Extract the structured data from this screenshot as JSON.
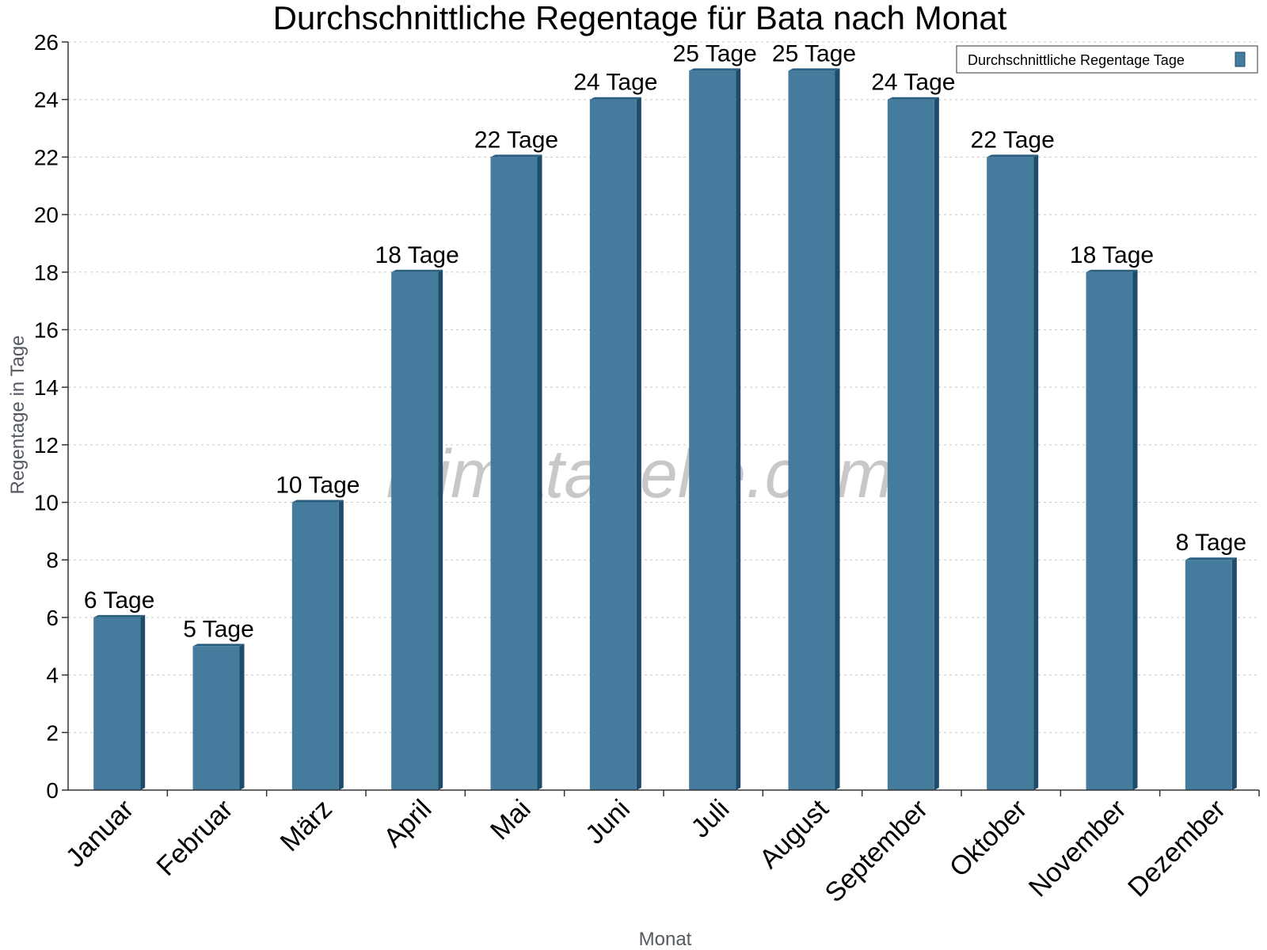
{
  "colors": {
    "bar_front": "#457b9d",
    "bar_side": "#1d4c6b",
    "bar_top": "#2a5f82"
  },
  "watermark": "klimatabelle.com",
  "chart_data": {
    "type": "bar",
    "title": "Durchschnittliche Regentage für Bata nach Monat",
    "xlabel": "Monat",
    "ylabel": "Regentage in Tage",
    "ylim": [
      0,
      26
    ],
    "yticks": [
      0,
      2,
      4,
      6,
      8,
      10,
      12,
      14,
      16,
      18,
      20,
      22,
      24,
      26
    ],
    "grid": true,
    "legend_position": "top-right",
    "categories": [
      "Januar",
      "Februar",
      "März",
      "April",
      "Mai",
      "Juni",
      "Juli",
      "August",
      "September",
      "Oktober",
      "November",
      "Dezember"
    ],
    "series": [
      {
        "name": "Durchschnittliche Regentage Tage",
        "values": [
          6,
          5,
          10,
          18,
          22,
          24,
          25,
          25,
          24,
          22,
          18,
          8
        ],
        "data_labels": [
          "6 Tage",
          "5 Tage",
          "10 Tage",
          "18 Tage",
          "22 Tage",
          "24 Tage",
          "25 Tage",
          "25 Tage",
          "24 Tage",
          "22 Tage",
          "18 Tage",
          "8 Tage"
        ]
      }
    ]
  }
}
